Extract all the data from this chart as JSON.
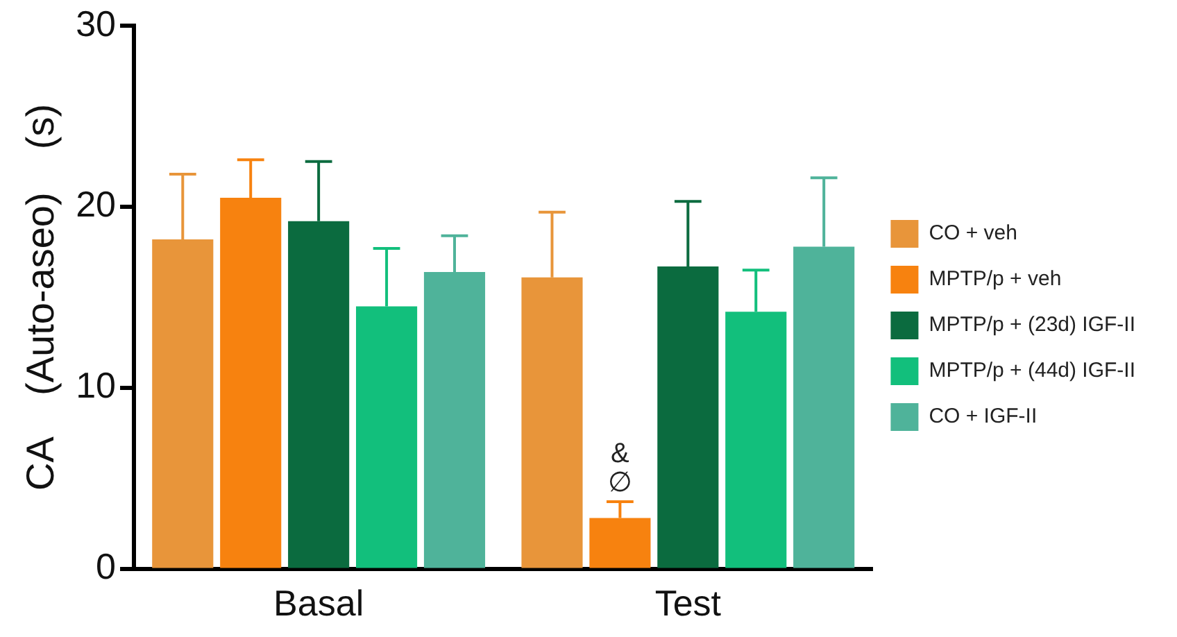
{
  "chart_data": {
    "type": "bar",
    "ylabel": "CA    (Auto-aseo)    (s)",
    "categories": [
      "Basal",
      "Test"
    ],
    "series": [
      {
        "name": "CO + veh",
        "color": "#e8953a",
        "values": [
          18.2,
          16.1
        ],
        "errors": [
          [
            18.2,
            21.8
          ],
          [
            16.1,
            19.7
          ]
        ]
      },
      {
        "name": "MPTP/p + veh",
        "color": "#f7820f",
        "values": [
          20.5,
          2.8
        ],
        "errors": [
          [
            20.5,
            22.6
          ],
          [
            2.8,
            3.7
          ]
        ]
      },
      {
        "name": "MPTP/p + (23d) IGF-II",
        "color": "#0b6b3f",
        "values": [
          19.2,
          16.7
        ],
        "errors": [
          [
            19.2,
            22.5
          ],
          [
            16.7,
            20.3
          ]
        ]
      },
      {
        "name": "MPTP/p + (44d) IGF-II",
        "color": "#12bf7c",
        "values": [
          14.5,
          14.2
        ],
        "errors": [
          [
            14.5,
            17.7
          ],
          [
            14.2,
            16.5
          ]
        ]
      },
      {
        "name": "CO + IGF-II",
        "color": "#4fb39a",
        "values": [
          16.4,
          17.8
        ],
        "errors": [
          [
            16.4,
            18.4
          ],
          [
            17.8,
            21.6
          ]
        ]
      }
    ],
    "ylim": [
      0,
      30
    ],
    "yticks": [
      0,
      10,
      20,
      30
    ],
    "grid": false,
    "legend": "right",
    "annotations": [
      "&",
      "∅"
    ]
  }
}
